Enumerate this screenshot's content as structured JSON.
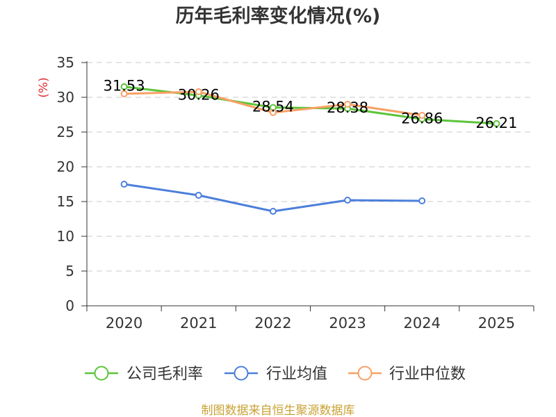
{
  "footer": "制图数据来自恒生聚源数据库",
  "colors": {
    "background": "#ffffff",
    "title": "#333333",
    "axis": "#333333",
    "tick_label": "#333333",
    "grid": "#c8c8c8",
    "ylabel": "#e02b2b",
    "data_label": "#000000",
    "legend_text": "#333333",
    "footer": "#c9a235"
  },
  "chart_data": {
    "type": "line",
    "title": "历年毛利率变化情况(%)",
    "ylabel": "(%)",
    "categories": [
      "2020",
      "2021",
      "2022",
      "2023",
      "2024",
      "2025"
    ],
    "ylim": [
      0,
      35
    ],
    "yticks": [
      0,
      5,
      10,
      15,
      20,
      25,
      30,
      35
    ],
    "grid": true,
    "legend": "bottom",
    "series": [
      {
        "name": "公司毛利率",
        "color": "#5cc43a",
        "show_labels": true,
        "values": [
          31.53,
          30.26,
          28.54,
          28.38,
          26.86,
          26.21
        ]
      },
      {
        "name": "行业均值",
        "color": "#4b7fdb",
        "show_labels": false,
        "values": [
          17.5,
          15.9,
          13.6,
          15.2,
          15.1,
          null
        ]
      },
      {
        "name": "行业中位数",
        "color": "#f7a064",
        "show_labels": false,
        "values": [
          30.5,
          30.8,
          27.8,
          29.0,
          27.4,
          null
        ]
      }
    ]
  }
}
